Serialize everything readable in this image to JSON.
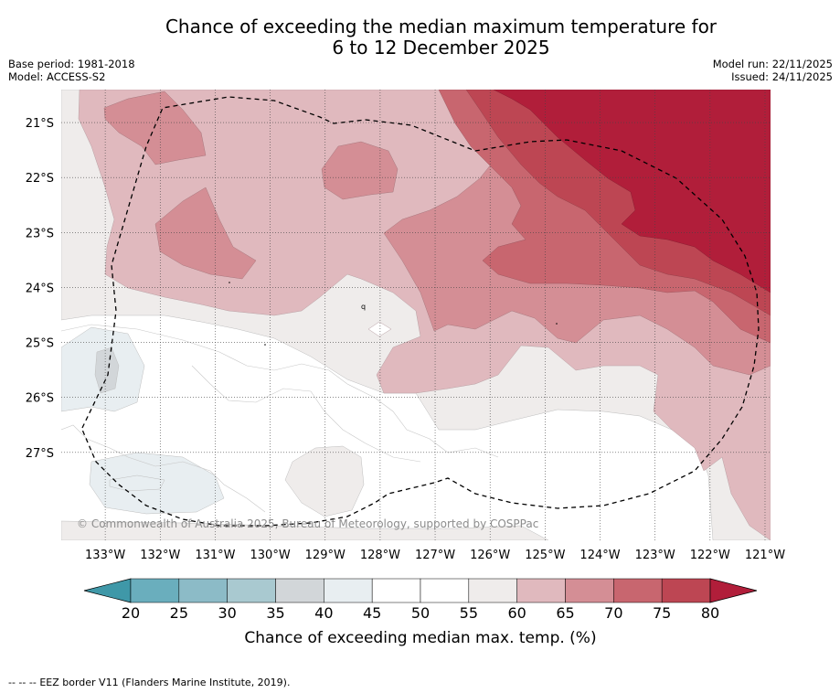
{
  "title": {
    "line1": "Chance of exceeding the median maximum temperature for",
    "line2": "6 to 12 December 2025"
  },
  "meta": {
    "base_period": "Base period: 1981-2018",
    "model": "Model: ACCESS-S2",
    "model_run": "Model run: 22/11/2025",
    "issued": "Issued: 24/11/2025"
  },
  "map": {
    "extent": {
      "lon_min": -133.8,
      "lon_max": -120.9,
      "lat_min": -28.6,
      "lat_max": -20.4
    },
    "lon_ticks": [
      {
        "value": -133,
        "label": "133°W"
      },
      {
        "value": -132,
        "label": "132°W"
      },
      {
        "value": -131,
        "label": "131°W"
      },
      {
        "value": -130,
        "label": "130°W"
      },
      {
        "value": -129,
        "label": "129°W"
      },
      {
        "value": -128,
        "label": "128°W"
      },
      {
        "value": -127,
        "label": "127°W"
      },
      {
        "value": -126,
        "label": "126°W"
      },
      {
        "value": -125,
        "label": "125°W"
      },
      {
        "value": -124,
        "label": "124°W"
      },
      {
        "value": -123,
        "label": "123°W"
      },
      {
        "value": -122,
        "label": "122°W"
      },
      {
        "value": -121,
        "label": "121°W"
      }
    ],
    "lat_ticks": [
      {
        "value": -21,
        "label": "21°S"
      },
      {
        "value": -22,
        "label": "22°S"
      },
      {
        "value": -23,
        "label": "23°S"
      },
      {
        "value": -24,
        "label": "24°S"
      },
      {
        "value": -25,
        "label": "25°S"
      },
      {
        "value": -26,
        "label": "26°S"
      },
      {
        "value": -27,
        "label": "27°S"
      }
    ],
    "copyright": "© Commonwealth of Australia 2025, Bureau of Meteorology, supported by COSPPac",
    "eez_border": "EEZ border V11 (Flanders Marine Institute, 2019)."
  },
  "colorbar": {
    "title": "Chance of exceeding median max. temp. (%)",
    "ticks": [
      "20",
      "25",
      "30",
      "35",
      "40",
      "45",
      "50",
      "55",
      "60",
      "65",
      "70",
      "75",
      "80"
    ],
    "under_color": "#3f98a8",
    "over_color": "#b11e3a",
    "bins": [
      "#6aaebd",
      "#8cbbc7",
      "#a9c9d0",
      "#d2d6d9",
      "#e8eef1",
      "#ffffff",
      "#ffffff",
      "#efeceb",
      "#e0b9be",
      "#d48e95",
      "#c8666f",
      "#bd4653"
    ]
  },
  "footnote": {
    "legend_symbol": "-- -- --",
    "text": "EEZ border V11 (Flanders Marine Institute, 2019)."
  }
}
